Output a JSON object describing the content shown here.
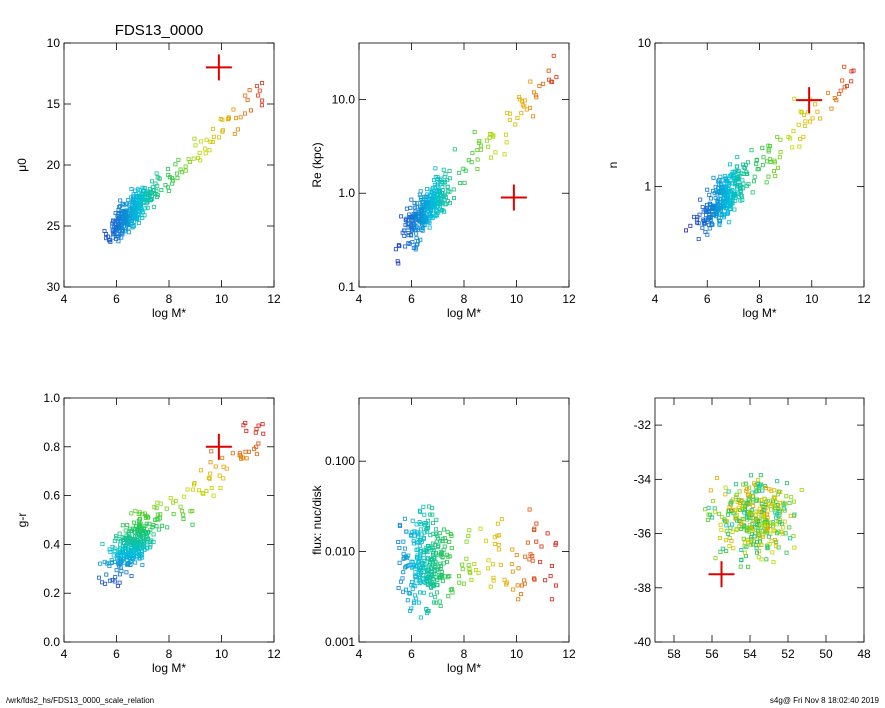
{
  "figure_title": "FDS13_0000",
  "footer": {
    "path": "/wrk/fds2_hs/FDS13_0000_scale_relation",
    "stamp": "s4g@  Fri Nov  8 18:02:40 2019"
  },
  "chart_data": [
    {
      "type": "scatter",
      "title": "FDS13_0000",
      "xlabel": "log M*",
      "ylabel": "μ0",
      "xlim": [
        4,
        12
      ],
      "ylim": [
        30,
        10
      ],
      "xticks": [
        4,
        6,
        8,
        10,
        12
      ],
      "yticks": [
        10,
        15,
        20,
        25,
        30
      ],
      "marker": {
        "x": 9.9,
        "y": 12.0
      }
    },
    {
      "type": "scatter",
      "xlabel": "log M*",
      "ylabel": "Re (kpc)",
      "yscale": "log",
      "xlim": [
        4,
        12
      ],
      "ylim": [
        0.1,
        40
      ],
      "xticks": [
        4,
        6,
        8,
        10,
        12
      ],
      "yticks": [
        0.1,
        1.0,
        10.0
      ],
      "ytick_labels": [
        "0.1",
        "1.0",
        "10.0"
      ],
      "marker": {
        "x": 9.9,
        "y": 0.9
      }
    },
    {
      "type": "scatter",
      "xlabel": "log M*",
      "ylabel": "n",
      "yscale": "log",
      "xlim": [
        4,
        12
      ],
      "ylim": [
        0.2,
        10
      ],
      "xticks": [
        4,
        6,
        8,
        10,
        12
      ],
      "yticks": [
        1,
        10
      ],
      "ytick_labels": [
        "1",
        "10"
      ],
      "marker": {
        "x": 9.9,
        "y": 4.0
      }
    },
    {
      "type": "scatter",
      "xlabel": "log M*",
      "ylabel": "g-r",
      "xlim": [
        4,
        12
      ],
      "ylim": [
        0.0,
        1.0
      ],
      "xticks": [
        4,
        6,
        8,
        10,
        12
      ],
      "yticks": [
        0.0,
        0.2,
        0.4,
        0.6,
        0.8,
        1.0
      ],
      "ytick_labels": [
        "0.0",
        "0.2",
        "0.4",
        "0.6",
        "0.8",
        "1.0"
      ],
      "marker": {
        "x": 9.9,
        "y": 0.8
      }
    },
    {
      "type": "scatter",
      "xlabel": "log M*",
      "ylabel": "flux: nuc/disk",
      "yscale": "log",
      "xlim": [
        4,
        12
      ],
      "ylim": [
        0.001,
        0.5
      ],
      "xticks": [
        4,
        6,
        8,
        10,
        12
      ],
      "yticks": [
        0.001,
        0.01,
        0.1
      ],
      "ytick_labels": [
        "0.001",
        "0.010",
        "0.100"
      ]
    },
    {
      "type": "scatter",
      "xlabel": "",
      "ylabel": "",
      "xlim": [
        59,
        48
      ],
      "ylim": [
        -40,
        -31
      ],
      "xticks": [
        58,
        56,
        54,
        52,
        50,
        48
      ],
      "yticks": [
        -40,
        -38,
        -36,
        -34,
        -32
      ],
      "marker": {
        "x": 55.5,
        "y": -37.5
      }
    }
  ]
}
